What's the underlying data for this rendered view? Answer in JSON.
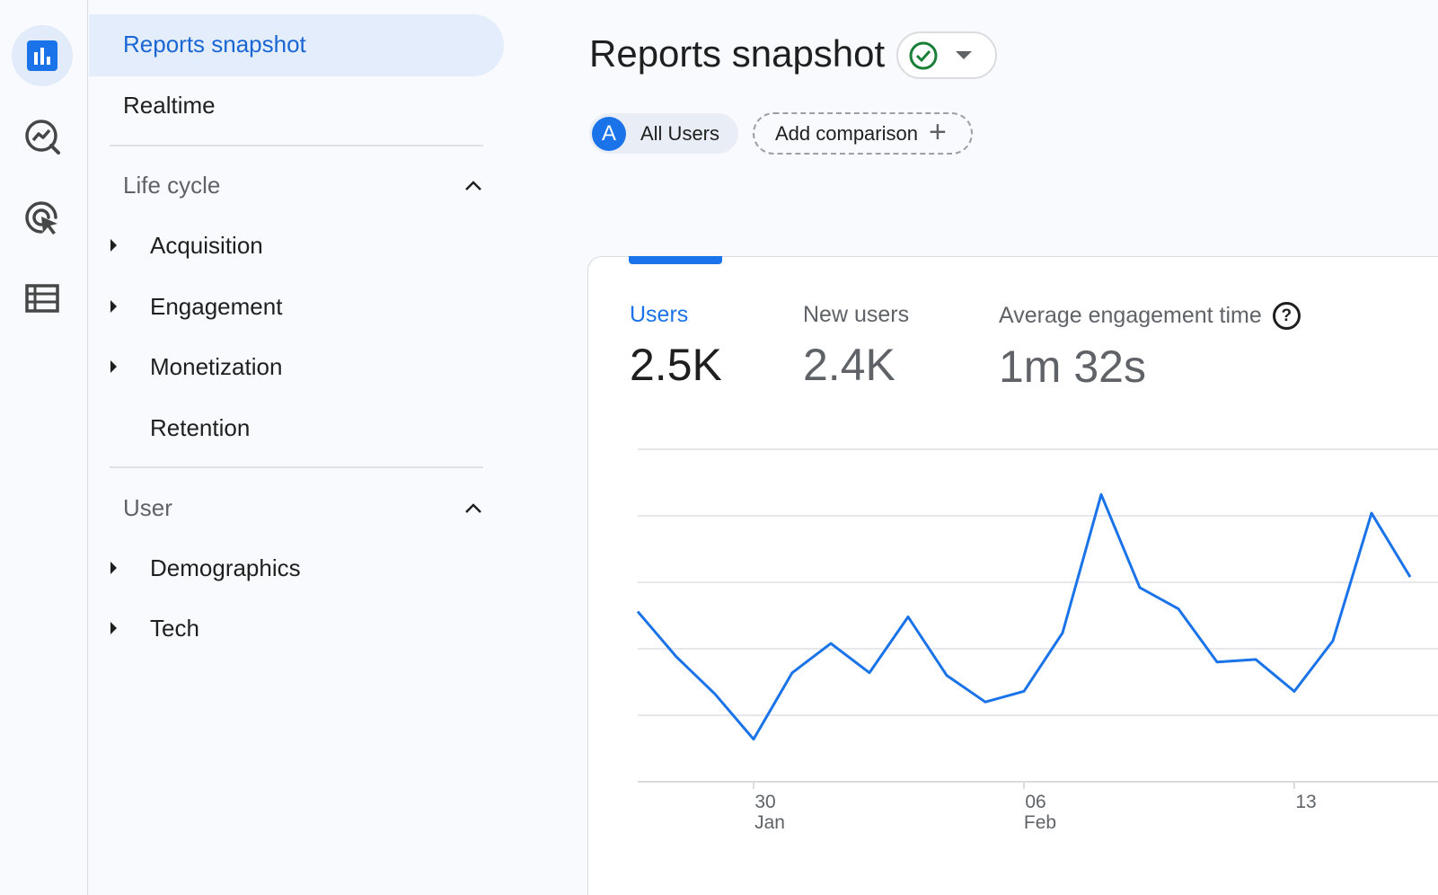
{
  "rail": {
    "items": [
      {
        "icon": "bar-chart-icon",
        "active": true
      },
      {
        "icon": "explore-trend-icon",
        "active": false
      },
      {
        "icon": "advertising-target-icon",
        "active": false
      },
      {
        "icon": "list-table-icon",
        "active": false
      }
    ]
  },
  "nav": {
    "reports_snapshot": "Reports snapshot",
    "realtime": "Realtime",
    "lifecycle": {
      "title": "Life cycle",
      "items": [
        "Acquisition",
        "Engagement",
        "Monetization",
        "Retention"
      ]
    },
    "user": {
      "title": "User",
      "items": [
        "Demographics",
        "Tech"
      ]
    }
  },
  "header": {
    "title": "Reports snapshot"
  },
  "segment": {
    "avatar_letter": "A",
    "label": "All Users"
  },
  "comparison": {
    "label": "Add comparison",
    "icon": "plus-icon"
  },
  "metrics": [
    {
      "label": "Users",
      "value": "2.5K",
      "active": true
    },
    {
      "label": "New users",
      "value": "2.4K",
      "active": false
    },
    {
      "label": "Average engagement time",
      "value": "1m 32s",
      "active": false,
      "help": "?"
    }
  ],
  "chart_data": {
    "type": "line",
    "title": "",
    "xlabel": "",
    "ylabel": "",
    "x_ticks": [
      {
        "day": "30",
        "month": "Jan"
      },
      {
        "day": "06",
        "month": "Feb"
      },
      {
        "day": "13",
        "month": ""
      }
    ],
    "x": [
      "Jan 27",
      "Jan 28",
      "Jan 29",
      "Jan 30",
      "Jan 31",
      "Feb 1",
      "Feb 2",
      "Feb 3",
      "Feb 4",
      "Feb 5",
      "Feb 6",
      "Feb 7",
      "Feb 8",
      "Feb 9",
      "Feb 10",
      "Feb 11",
      "Feb 12",
      "Feb 13",
      "Feb 14",
      "Feb 15",
      "Feb 16"
    ],
    "series": [
      {
        "color": "#1a73e8",
        "values": [
          64,
          47,
          33,
          16,
          41,
          52,
          41,
          62,
          40,
          30,
          34,
          56,
          108,
          73,
          65,
          45,
          46,
          34,
          53,
          101,
          77
        ]
      }
    ],
    "ylim": [
      0,
      125
    ],
    "grid": true,
    "y_gridlines": 5
  }
}
